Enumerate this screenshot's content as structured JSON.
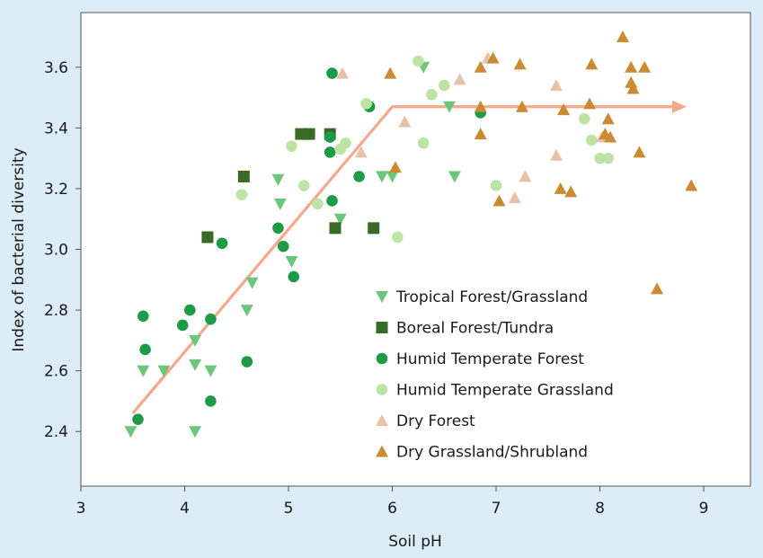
{
  "chart_data": {
    "type": "scatter",
    "xlabel": "Soil pH",
    "ylabel": "Index of bacterial diversity",
    "xlim": [
      3,
      9.45
    ],
    "ylim": [
      2.22,
      3.78
    ],
    "xticks": [
      3,
      4,
      5,
      6,
      7,
      8,
      9
    ],
    "yticks": [
      2.4,
      2.6,
      2.8,
      3.0,
      3.2,
      3.4,
      3.6
    ],
    "ytick_labels": [
      "2.4",
      "2.6",
      "2.8",
      "3.0",
      "3.2",
      "3.4",
      "3.6"
    ],
    "grid": false,
    "legend_position": "bottom-center",
    "trend": [
      [
        3.5,
        2.46
      ],
      [
        6.0,
        3.47
      ],
      [
        8.8,
        3.47
      ]
    ],
    "trend_color": "#f5a88a",
    "series": [
      {
        "name": "Tropical Forest/Grassland",
        "marker": "triangle-down",
        "color": "#6cc77c",
        "points": [
          [
            3.48,
            2.4
          ],
          [
            3.6,
            2.6
          ],
          [
            3.8,
            2.6
          ],
          [
            4.1,
            2.4
          ],
          [
            4.1,
            2.62
          ],
          [
            4.1,
            2.7
          ],
          [
            4.25,
            2.6
          ],
          [
            4.6,
            2.8
          ],
          [
            4.65,
            2.89
          ],
          [
            4.9,
            3.23
          ],
          [
            4.92,
            3.15
          ],
          [
            5.03,
            2.96
          ],
          [
            5.5,
            3.1
          ],
          [
            5.9,
            3.24
          ],
          [
            6.0,
            3.24
          ],
          [
            6.3,
            3.6
          ],
          [
            6.55,
            3.47
          ],
          [
            6.6,
            3.24
          ]
        ]
      },
      {
        "name": "Boreal Forest/Tundra",
        "marker": "square",
        "color": "#3a6b24",
        "points": [
          [
            4.22,
            3.04
          ],
          [
            4.57,
            3.24
          ],
          [
            5.12,
            3.38
          ],
          [
            5.2,
            3.38
          ],
          [
            5.4,
            3.38
          ],
          [
            5.45,
            3.07
          ],
          [
            5.82,
            3.07
          ]
        ]
      },
      {
        "name": "Humid Temperate Forest",
        "marker": "circle",
        "color": "#1e9b46",
        "points": [
          [
            3.55,
            2.44
          ],
          [
            3.6,
            2.78
          ],
          [
            3.62,
            2.67
          ],
          [
            3.98,
            2.75
          ],
          [
            4.05,
            2.8
          ],
          [
            4.25,
            2.77
          ],
          [
            4.25,
            2.5
          ],
          [
            4.36,
            3.02
          ],
          [
            4.6,
            2.63
          ],
          [
            4.9,
            3.07
          ],
          [
            4.95,
            3.01
          ],
          [
            5.05,
            2.91
          ],
          [
            5.4,
            3.37
          ],
          [
            5.4,
            3.32
          ],
          [
            5.42,
            3.58
          ],
          [
            5.42,
            3.16
          ],
          [
            5.68,
            3.24
          ],
          [
            5.78,
            3.47
          ],
          [
            6.85,
            3.45
          ]
        ]
      },
      {
        "name": "Humid Temperate Grassland",
        "marker": "circle",
        "color": "#bde4a4",
        "points": [
          [
            4.55,
            3.18
          ],
          [
            5.03,
            3.34
          ],
          [
            5.15,
            3.21
          ],
          [
            5.28,
            3.15
          ],
          [
            5.5,
            3.33
          ],
          [
            5.55,
            3.35
          ],
          [
            5.75,
            3.48
          ],
          [
            6.05,
            3.04
          ],
          [
            6.25,
            3.62
          ],
          [
            6.3,
            3.35
          ],
          [
            6.38,
            3.51
          ],
          [
            6.5,
            3.54
          ],
          [
            7.0,
            3.21
          ],
          [
            7.85,
            3.43
          ],
          [
            7.92,
            3.36
          ],
          [
            8.0,
            3.3
          ],
          [
            8.08,
            3.3
          ]
        ]
      },
      {
        "name": "Dry Forest",
        "marker": "triangle-up",
        "color": "#e8c2a8",
        "points": [
          [
            5.52,
            3.58
          ],
          [
            5.7,
            3.32
          ],
          [
            6.12,
            3.42
          ],
          [
            6.65,
            3.56
          ],
          [
            6.92,
            3.63
          ],
          [
            7.18,
            3.17
          ],
          [
            7.28,
            3.24
          ],
          [
            7.58,
            3.54
          ],
          [
            7.58,
            3.31
          ],
          [
            8.02,
            3.37
          ]
        ]
      },
      {
        "name": "Dry Grassland/Shrubland",
        "marker": "triangle-up",
        "color": "#c98b33",
        "points": [
          [
            5.98,
            3.58
          ],
          [
            6.03,
            3.27
          ],
          [
            6.85,
            3.6
          ],
          [
            6.85,
            3.38
          ],
          [
            6.85,
            3.47
          ],
          [
            6.97,
            3.63
          ],
          [
            7.03,
            3.16
          ],
          [
            7.23,
            3.61
          ],
          [
            7.25,
            3.47
          ],
          [
            7.62,
            3.2
          ],
          [
            7.65,
            3.46
          ],
          [
            7.72,
            3.19
          ],
          [
            7.9,
            3.48
          ],
          [
            7.92,
            3.61
          ],
          [
            8.05,
            3.38
          ],
          [
            8.08,
            3.43
          ],
          [
            8.1,
            3.37
          ],
          [
            8.22,
            3.7
          ],
          [
            8.3,
            3.6
          ],
          [
            8.3,
            3.55
          ],
          [
            8.32,
            3.53
          ],
          [
            8.38,
            3.32
          ],
          [
            8.43,
            3.6
          ],
          [
            8.55,
            2.87
          ],
          [
            8.88,
            3.21
          ]
        ]
      }
    ]
  }
}
